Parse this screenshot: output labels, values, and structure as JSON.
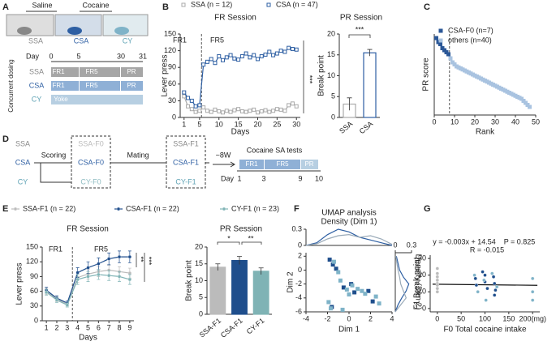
{
  "panel_labels": [
    "A",
    "B",
    "C",
    "D",
    "E",
    "F",
    "G"
  ],
  "panel_a": {
    "drugs": [
      "Saline",
      "Cocaine"
    ],
    "groups": [
      "SSA",
      "CSA",
      "CY"
    ],
    "day_label": "Day",
    "days": [
      0,
      5,
      30,
      31
    ],
    "schedules": [
      [
        "FR1",
        "FR5",
        "PR"
      ],
      [
        "FR1",
        "FR5",
        "PR"
      ],
      [
        "Yoke"
      ]
    ],
    "side_label": "Concurrent dosing"
  },
  "panel_d": {
    "groups": [
      "SSA",
      "CSA",
      "CY"
    ],
    "scoring": "Scoring",
    "f0": [
      "SSA-F0",
      "CSA-F0",
      "CY-F0"
    ],
    "mating": "Mating",
    "f1": [
      "SSA-F1",
      "CSA-F1",
      "CY-F1"
    ],
    "wait": "~8W",
    "tests": "Cocaine SA tests",
    "day_label": "Day",
    "days": [
      1,
      3,
      9,
      10
    ],
    "phases": [
      "FR1",
      "FR5",
      "PR"
    ]
  },
  "chart_data": [
    {
      "type": "line",
      "title": "FR Session",
      "xlabel": "Days",
      "ylabel": "Lever press",
      "annotations": [
        "FR1",
        "FR5",
        "***"
      ],
      "divider": 5.5,
      "x": [
        1,
        2,
        3,
        4,
        5,
        6,
        7,
        8,
        9,
        10,
        11,
        12,
        13,
        14,
        15,
        16,
        17,
        18,
        19,
        20,
        21,
        22,
        23,
        24,
        25,
        26,
        27,
        28,
        29,
        30
      ],
      "xlim": [
        0,
        31
      ],
      "xticks": [
        1,
        5,
        10,
        15,
        20,
        25,
        30
      ],
      "ylim": [
        0,
        150
      ],
      "yticks": [
        0,
        30,
        60,
        90,
        120,
        150
      ],
      "series": [
        {
          "name": "SSA (n = 12)",
          "color": "#aaaaaa",
          "values": [
            38,
            20,
            15,
            10,
            12,
            18,
            12,
            10,
            14,
            11,
            9,
            12,
            10,
            13,
            15,
            11,
            10,
            12,
            14,
            9,
            11,
            13,
            10,
            12,
            15,
            14,
            12,
            22,
            25,
            20
          ]
        },
        {
          "name": "CSA (n = 47)",
          "color": "#2e5fa3",
          "values": [
            45,
            35,
            30,
            20,
            22,
            95,
            100,
            105,
            98,
            110,
            103,
            108,
            112,
            106,
            104,
            110,
            115,
            108,
            112,
            105,
            110,
            113,
            118,
            112,
            115,
            120,
            118,
            125,
            123,
            122
          ]
        }
      ]
    },
    {
      "type": "bar",
      "title": "PR Session",
      "ylabel": "Break point",
      "annotations": [
        "***"
      ],
      "bar_style": "outline",
      "categories": [
        "SSA",
        "CSA"
      ],
      "values": [
        3.2,
        15.5
      ],
      "errors": [
        1.5,
        0.8
      ],
      "colors": [
        "#aaaaaa",
        "#2e5fa3"
      ],
      "ylim": [
        0,
        20
      ],
      "yticks": [
        0,
        5,
        10,
        15,
        20
      ]
    },
    {
      "type": "scatter",
      "xlabel": "Rank",
      "ylabel": "PR score",
      "divider": 7.5,
      "xlim": [
        0,
        50
      ],
      "xticks": [
        0,
        10,
        20,
        30,
        40,
        50
      ],
      "ylim": [
        -1,
        3
      ],
      "series": [
        {
          "name": "CSA-F0 (n=7)",
          "color": "#2b5797",
          "x": [
            1,
            2,
            3,
            4,
            5,
            6,
            7
          ],
          "values": [
            2.8,
            2.6,
            2.5,
            2.3,
            2.2,
            2.1,
            2.0
          ]
        },
        {
          "name": "others (n=40)",
          "color": "#a9c3e0",
          "x": [
            8,
            9,
            10,
            11,
            12,
            13,
            14,
            15,
            16,
            17,
            18,
            19,
            20,
            21,
            22,
            23,
            24,
            25,
            26,
            27,
            28,
            29,
            30,
            31,
            32,
            33,
            34,
            35,
            36,
            37,
            38,
            39,
            40,
            41,
            42,
            43,
            44,
            45,
            46,
            47
          ],
          "values": [
            1.8,
            1.6,
            1.5,
            1.4,
            1.35,
            1.3,
            1.25,
            1.2,
            1.15,
            1.1,
            1.05,
            1.0,
            0.95,
            0.9,
            0.85,
            0.8,
            0.75,
            0.7,
            0.65,
            0.6,
            0.55,
            0.5,
            0.45,
            0.4,
            0.35,
            0.3,
            0.25,
            0.2,
            0.15,
            0.1,
            0.05,
            0.0,
            -0.05,
            -0.1,
            -0.15,
            -0.2,
            -0.3,
            -0.4,
            -0.5,
            -0.6
          ]
        }
      ]
    },
    {
      "type": "line",
      "title": "FR Session",
      "xlabel": "Days",
      "ylabel": "Lever press",
      "annotations": [
        "FR1",
        "FR5",
        "**",
        "***"
      ],
      "divider": 3.5,
      "x": [
        1,
        2,
        3,
        4,
        5,
        6,
        7,
        8,
        9
      ],
      "xlim": [
        0.6,
        9.4
      ],
      "xticks": [
        1,
        2,
        3,
        4,
        5,
        6,
        7,
        8,
        9
      ],
      "ylim": [
        0,
        150
      ],
      "yticks": [
        0,
        30,
        60,
        90,
        120,
        150
      ],
      "series": [
        {
          "name": "SSA-F1 (n = 22)",
          "color": "#bbbbbb",
          "values": [
            60,
            44,
            34,
            88,
            95,
            100,
            103,
            100,
            97
          ],
          "errors": [
            6,
            5,
            4,
            10,
            10,
            10,
            10,
            10,
            10
          ]
        },
        {
          "name": "CSA-F1 (n = 22)",
          "color": "#1f4e8c",
          "values": [
            62,
            46,
            36,
            98,
            108,
            116,
            126,
            130,
            130
          ],
          "errors": [
            6,
            5,
            4,
            10,
            12,
            12,
            12,
            12,
            12
          ]
        },
        {
          "name": "CY-F1 (n = 23)",
          "color": "#7fb3b5",
          "values": [
            58,
            42,
            32,
            84,
            90,
            94,
            92,
            90,
            84
          ],
          "errors": [
            6,
            5,
            4,
            10,
            10,
            10,
            10,
            10,
            10
          ]
        }
      ]
    },
    {
      "type": "bar",
      "title": "PR Session",
      "ylabel": "Break point",
      "annotations": [
        "*",
        "**"
      ],
      "bar_style": "filled",
      "categories": [
        "SSA-F1",
        "CSA-F1",
        "CY-F1"
      ],
      "values": [
        14,
        16,
        12.8
      ],
      "errors": [
        1,
        1.2,
        1
      ],
      "colors": [
        "#bbbbbb",
        "#1f4e8c",
        "#7fb3b5"
      ],
      "ylim": [
        0,
        20
      ],
      "yticks": [
        0,
        5,
        10,
        15,
        20
      ]
    },
    {
      "type": "line",
      "title": "Density (Dim 1)",
      "x": [
        -4,
        -3,
        -2,
        -1,
        0,
        1,
        2,
        3,
        4
      ],
      "xlim": [
        -4,
        4
      ],
      "ylim": [
        0,
        0.3
      ],
      "yticks": [
        0,
        0.3
      ],
      "series": [
        {
          "color": "#2e5fa3",
          "values": [
            0,
            0.05,
            0.2,
            0.3,
            0.25,
            0.15,
            0.1,
            0.05,
            0
          ]
        },
        {
          "color": "#9aaab8",
          "values": [
            0,
            0.03,
            0.12,
            0.18,
            0.2,
            0.15,
            0.18,
            0.12,
            0.02
          ]
        }
      ]
    },
    {
      "type": "scatter",
      "title": "UMAP analysis",
      "xlabel": "Dim 1",
      "ylabel": "Dim 2",
      "xlim": [
        -4,
        4
      ],
      "xticks": [
        -4,
        -2,
        0,
        2,
        4
      ],
      "ylim": [
        -6,
        2.5
      ],
      "yticks": [
        -6,
        -4,
        -2,
        0,
        2
      ],
      "series": [
        {
          "color": "#1f4e8c",
          "x": [
            -1.8,
            -1.5,
            -1.2,
            -0.5,
            0.5,
            1.8,
            2.2,
            -1.6,
            0.2
          ],
          "values": [
            1.5,
            0.8,
            0.2,
            -2.5,
            -3.2,
            -3.0,
            -4.5,
            -5.3,
            -2.0
          ]
        },
        {
          "color": "#7fb3c8",
          "x": [
            -1.4,
            -1,
            -0.8,
            -0.2,
            0,
            0.8,
            1.2,
            1.5,
            2.5,
            2.8,
            -1.9,
            -1.7,
            -0.6,
            0.3
          ],
          "values": [
            1.2,
            -0.3,
            -1.5,
            -2.8,
            -3.5,
            -2.7,
            -3.0,
            -3.4,
            -3.8,
            -4.8,
            -4.6,
            -5.5,
            -5.7,
            -2.2
          ]
        }
      ]
    },
    {
      "type": "line",
      "title": "Density (Dim 2)",
      "xlim": [
        0,
        0.3
      ],
      "xticks": [
        0,
        0.3
      ],
      "ylim": [
        -6,
        2.5
      ],
      "series": [
        {
          "color": "#2e5fa3",
          "x": [
            0,
            0.05,
            0.12,
            0.2,
            0.25,
            0.15,
            0.08,
            0.05,
            0.02
          ],
          "values": [
            -6,
            -5,
            -4,
            -3,
            -2,
            -1,
            0,
            1,
            2
          ]
        },
        {
          "color": "#9aaab8",
          "x": [
            0,
            0.1,
            0.2,
            0.15,
            0.1,
            0.08,
            0.05,
            0.03,
            0.01
          ],
          "values": [
            -6,
            -5,
            -4,
            -3,
            -2,
            -1,
            0,
            1,
            2
          ]
        }
      ]
    },
    {
      "type": "scatter",
      "xlabel": "F0 Total cocaine intake",
      "ylabel": "F1 Break point",
      "annotations": [
        "y = -0.003x + 14.54",
        "P = 0.825",
        "R = -0.015"
      ],
      "xlim": [
        -15,
        215
      ],
      "xticks": [
        0,
        50,
        100,
        150,
        {
          "value": 200,
          "label": "200(mg)"
        }
      ],
      "ylim": [
        -2,
        32
      ],
      "yticks": [
        0,
        10,
        20,
        30
      ],
      "fit": {
        "x": [
          -10,
          210
        ],
        "y": [
          14.57,
          13.91
        ]
      },
      "series": [
        {
          "color": "#bbbbbb",
          "x": [
            0,
            0,
            0,
            0,
            0,
            0,
            0,
            0
          ],
          "values": [
            24,
            21,
            19,
            17,
            15,
            14,
            12,
            10
          ]
        },
        {
          "color": "#1f4e8c",
          "x": [
            80,
            82,
            95,
            100,
            100,
            105,
            118,
            120,
            120,
            122
          ],
          "values": [
            18,
            14,
            22,
            20,
            16,
            12,
            19,
            15,
            8,
            11
          ]
        },
        {
          "color": "#7fb3c8",
          "x": [
            78,
            85,
            98,
            102,
            115,
            125,
            200,
            200,
            200
          ],
          "values": [
            20,
            10,
            17,
            5,
            21,
            13,
            18,
            10,
            5
          ]
        }
      ]
    }
  ]
}
